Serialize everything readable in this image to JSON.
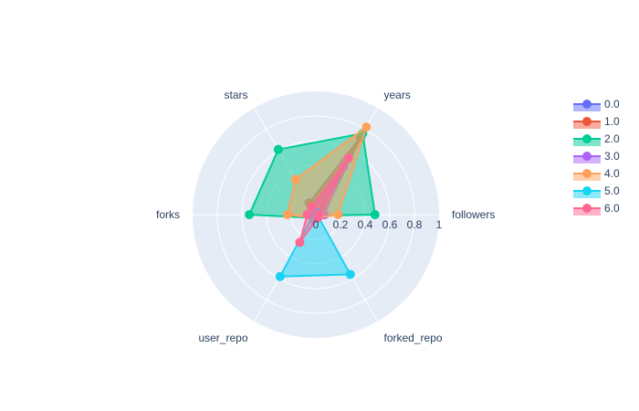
{
  "chart_data": {
    "type": "radar",
    "axes": [
      "followers",
      "years",
      "stars",
      "forks",
      "user_repo",
      "forked_repo"
    ],
    "radial_range": [
      0,
      1
    ],
    "radial_ticks": [
      0,
      0.2,
      0.4,
      0.6,
      0.8,
      1
    ],
    "radial_tick_labels": [
      "0",
      "0.2",
      "0.4",
      "0.6",
      "0.8",
      "1"
    ],
    "grid": true,
    "legend_position": "top-right",
    "series": [
      {
        "name": "0.0",
        "color": "#636efa",
        "values": [
          0.06,
          0.73,
          0.11,
          0.04,
          0.02,
          0.02
        ]
      },
      {
        "name": "1.0",
        "color": "#EF553B",
        "values": [
          0.04,
          0.72,
          0.1,
          0.05,
          0.03,
          0.02
        ]
      },
      {
        "name": "2.0",
        "color": "#00cc96",
        "values": [
          0.48,
          0.76,
          0.61,
          0.54,
          0.03,
          0.01
        ]
      },
      {
        "name": "3.0",
        "color": "#ab63fa",
        "values": [
          0.07,
          0.45,
          0.07,
          0.06,
          0.04,
          0.02
        ]
      },
      {
        "name": "4.0",
        "color": "#FFA15A",
        "values": [
          0.18,
          0.82,
          0.33,
          0.23,
          0.03,
          0.03
        ]
      },
      {
        "name": "5.0",
        "color": "#19d3f3",
        "values": [
          0.01,
          0.02,
          0.02,
          0.02,
          0.58,
          0.56
        ]
      },
      {
        "name": "6.0",
        "color": "#FF6692",
        "values": [
          0.02,
          0.53,
          0.07,
          0.07,
          0.26,
          0.03
        ]
      }
    ]
  }
}
